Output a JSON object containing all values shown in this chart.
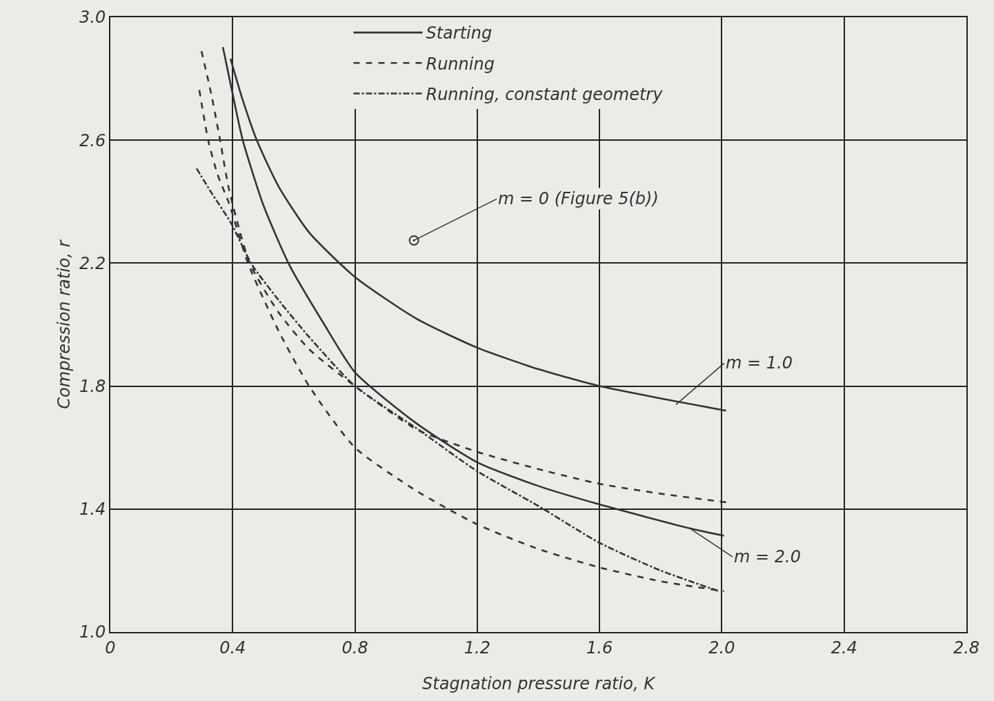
{
  "chart_data": {
    "type": "line",
    "xlabel": "Stagnation pressure ratio, K",
    "ylabel": "Compression ratio, r",
    "xlim": [
      0,
      2.8
    ],
    "xticks": [
      0,
      0.4,
      0.8,
      1.2,
      1.6,
      {
        "value": 2,
        "label": "2.0"
      },
      2.4,
      2.8
    ],
    "ylim": [
      1,
      3
    ],
    "yticks": [
      {
        "value": 1,
        "label": "1.0"
      },
      1.4,
      1.8,
      2.2,
      2.6,
      {
        "value": 3,
        "label": "3.0"
      }
    ],
    "grid": true,
    "legend": "top",
    "marker": "none",
    "series": [
      {
        "name": "Starting",
        "color": "#333333",
        "line_style": "solid",
        "x": [
          0.393,
          0.43,
          0.479,
          0.55,
          0.65,
          0.8,
          1.0,
          1.2,
          1.4,
          1.6,
          1.8,
          2.014
        ],
        "values": [
          2.865,
          2.74,
          2.6,
          2.45,
          2.3,
          2.155,
          2.02,
          1.925,
          1.855,
          1.8,
          1.76,
          1.72
        ]
      },
      {
        "color": "#333333",
        "line_style": "solid",
        "x": [
          0.368,
          0.4,
          0.433,
          0.5,
          0.585,
          0.7,
          0.8,
          0.998,
          1.2,
          1.4,
          1.6,
          1.9,
          2.007
        ],
        "values": [
          2.903,
          2.75,
          2.6,
          2.39,
          2.195,
          2.0,
          1.845,
          1.681,
          1.552,
          1.475,
          1.415,
          1.336,
          1.313
        ]
      },
      {
        "name": "Running",
        "color": "#333333",
        "line_style": "dashed",
        "x": [
          0.298,
          0.33,
          0.359,
          0.388,
          0.456,
          0.55,
          0.65,
          0.8,
          1.0,
          1.2,
          1.4,
          1.6,
          1.8,
          2.014
        ],
        "values": [
          2.89,
          2.75,
          2.6,
          2.44,
          2.2,
          2.04,
          1.92,
          1.8,
          1.66,
          1.586,
          1.53,
          1.482,
          1.45,
          1.422
        ]
      },
      {
        "color": "#333333",
        "line_style": "dashed",
        "x": [
          0.291,
          0.32,
          0.35,
          0.388,
          0.45,
          0.55,
          0.65,
          0.8,
          1.0,
          1.2,
          1.4,
          1.6,
          1.8,
          2.007
        ],
        "values": [
          2.763,
          2.6,
          2.49,
          2.395,
          2.2,
          1.98,
          1.8,
          1.6,
          1.46,
          1.35,
          1.27,
          1.21,
          1.165,
          1.133
        ]
      },
      {
        "name": "Running, constant geometry",
        "color": "#333333",
        "line_style": "dashdot",
        "x": [
          0.282,
          0.33,
          0.395,
          0.463,
          0.55,
          0.65,
          0.8,
          0.998,
          1.2,
          1.4,
          1.6,
          1.8,
          1.99
        ],
        "values": [
          2.508,
          2.43,
          2.33,
          2.195,
          2.08,
          1.96,
          1.8,
          1.665,
          1.523,
          1.41,
          1.29,
          1.2,
          1.133
        ]
      },
      {
        "type": "scatter",
        "color": "#333333",
        "marker": "circle",
        "x": [
          0.993
        ],
        "values": [
          2.274
        ]
      }
    ],
    "annotations": [
      {
        "text": "m = 0 (Figure 5(b))",
        "x": 0.993,
        "y": 2.274
      },
      {
        "text": "m = 1.0",
        "x": 1.85,
        "y": 1.74
      },
      {
        "text": "m = 2.0",
        "x": 1.9,
        "y": 1.334
      }
    ]
  }
}
